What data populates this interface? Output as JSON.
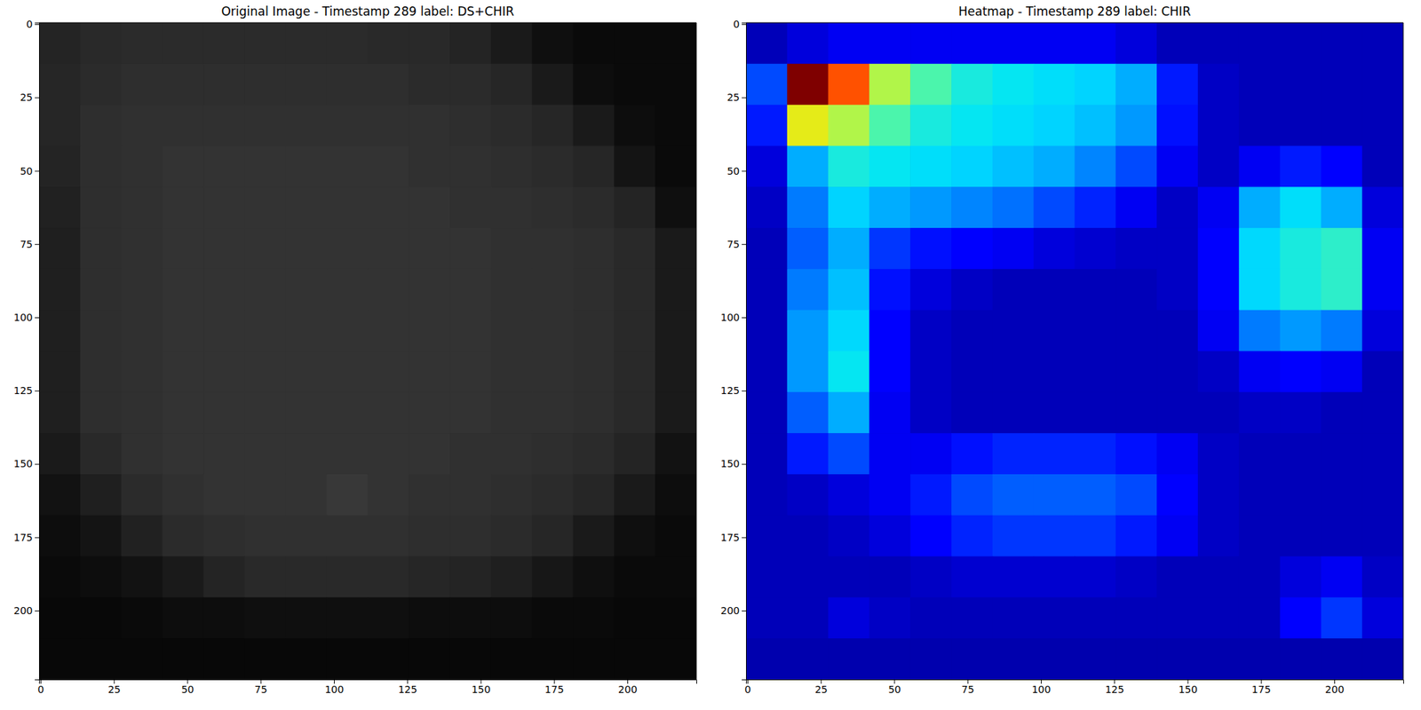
{
  "chart_data": [
    {
      "type": "heatmap",
      "title": "Original Image - Timestamp 289 label: DS+CHIR",
      "color": "gray",
      "xlim": [
        -0.5,
        223.5
      ],
      "ylim": [
        223.5,
        -0.5
      ],
      "xticks": [
        0,
        25,
        50,
        75,
        100,
        125,
        150,
        175,
        200
      ],
      "yticks": [
        0,
        25,
        50,
        75,
        100,
        125,
        150,
        175,
        200
      ],
      "zlim": [
        0,
        1
      ],
      "x": [
        6.5,
        20.5,
        34.5,
        48.5,
        62.5,
        76.5,
        90.5,
        104.5,
        118.5,
        132.5,
        146.5,
        160.5,
        174.5,
        188.5,
        202.5,
        216.5
      ],
      "y": [
        6.5,
        20.5,
        34.5,
        48.5,
        62.5,
        76.5,
        90.5,
        104.5,
        118.5,
        132.5,
        146.5,
        160.5,
        174.5,
        188.5,
        202.5,
        216.5
      ],
      "z": [
        [
          0.14,
          0.16,
          0.17,
          0.17,
          0.17,
          0.17,
          0.17,
          0.17,
          0.16,
          0.16,
          0.14,
          0.1,
          0.06,
          0.04,
          0.04,
          0.04
        ],
        [
          0.15,
          0.17,
          0.18,
          0.18,
          0.18,
          0.18,
          0.18,
          0.18,
          0.18,
          0.17,
          0.17,
          0.15,
          0.1,
          0.05,
          0.04,
          0.04
        ],
        [
          0.15,
          0.18,
          0.19,
          0.19,
          0.19,
          0.19,
          0.19,
          0.19,
          0.19,
          0.19,
          0.18,
          0.17,
          0.15,
          0.1,
          0.05,
          0.04
        ],
        [
          0.14,
          0.18,
          0.19,
          0.2,
          0.2,
          0.2,
          0.2,
          0.2,
          0.2,
          0.19,
          0.19,
          0.18,
          0.17,
          0.15,
          0.08,
          0.04
        ],
        [
          0.13,
          0.18,
          0.19,
          0.2,
          0.2,
          0.2,
          0.2,
          0.2,
          0.2,
          0.2,
          0.19,
          0.19,
          0.18,
          0.17,
          0.14,
          0.06
        ],
        [
          0.12,
          0.18,
          0.19,
          0.2,
          0.2,
          0.2,
          0.2,
          0.2,
          0.2,
          0.2,
          0.2,
          0.19,
          0.19,
          0.18,
          0.16,
          0.1
        ],
        [
          0.12,
          0.18,
          0.19,
          0.2,
          0.2,
          0.2,
          0.2,
          0.2,
          0.2,
          0.2,
          0.2,
          0.19,
          0.19,
          0.18,
          0.16,
          0.1
        ],
        [
          0.12,
          0.18,
          0.19,
          0.2,
          0.2,
          0.2,
          0.2,
          0.2,
          0.2,
          0.2,
          0.2,
          0.19,
          0.19,
          0.18,
          0.16,
          0.1
        ],
        [
          0.12,
          0.18,
          0.19,
          0.2,
          0.2,
          0.2,
          0.2,
          0.2,
          0.2,
          0.2,
          0.2,
          0.19,
          0.19,
          0.18,
          0.16,
          0.1
        ],
        [
          0.12,
          0.18,
          0.19,
          0.2,
          0.2,
          0.2,
          0.2,
          0.2,
          0.2,
          0.2,
          0.2,
          0.19,
          0.19,
          0.18,
          0.16,
          0.1
        ],
        [
          0.1,
          0.16,
          0.19,
          0.2,
          0.2,
          0.2,
          0.2,
          0.2,
          0.2,
          0.2,
          0.19,
          0.19,
          0.18,
          0.17,
          0.14,
          0.07
        ],
        [
          0.07,
          0.12,
          0.17,
          0.19,
          0.2,
          0.2,
          0.2,
          0.22,
          0.2,
          0.19,
          0.19,
          0.18,
          0.17,
          0.15,
          0.1,
          0.05
        ],
        [
          0.05,
          0.08,
          0.13,
          0.17,
          0.18,
          0.19,
          0.19,
          0.19,
          0.19,
          0.18,
          0.18,
          0.17,
          0.15,
          0.1,
          0.06,
          0.04
        ],
        [
          0.04,
          0.05,
          0.07,
          0.1,
          0.14,
          0.16,
          0.16,
          0.16,
          0.16,
          0.15,
          0.14,
          0.12,
          0.09,
          0.06,
          0.04,
          0.04
        ],
        [
          0.03,
          0.03,
          0.04,
          0.05,
          0.05,
          0.06,
          0.06,
          0.06,
          0.06,
          0.05,
          0.05,
          0.05,
          0.04,
          0.04,
          0.03,
          0.03
        ],
        [
          0.03,
          0.03,
          0.03,
          0.03,
          0.03,
          0.03,
          0.03,
          0.03,
          0.03,
          0.03,
          0.03,
          0.03,
          0.03,
          0.03,
          0.03,
          0.03
        ]
      ]
    },
    {
      "type": "heatmap",
      "title": "Heatmap - Timestamp 289 label: CHIR",
      "color": "jet",
      "xlim": [
        -0.5,
        223.5
      ],
      "ylim": [
        223.5,
        -0.5
      ],
      "xticks": [
        0,
        25,
        50,
        75,
        100,
        125,
        150,
        175,
        200
      ],
      "yticks": [
        0,
        25,
        50,
        75,
        100,
        125,
        150,
        175,
        200
      ],
      "zlim": [
        0,
        1
      ],
      "x": [
        6.5,
        20.5,
        34.5,
        48.5,
        62.5,
        76.5,
        90.5,
        104.5,
        118.5,
        132.5,
        146.5,
        160.5,
        174.5,
        188.5,
        202.5,
        216.5
      ],
      "y": [
        6.5,
        20.5,
        34.5,
        48.5,
        62.5,
        76.5,
        90.5,
        104.5,
        118.5,
        132.5,
        146.5,
        160.5,
        174.5,
        188.5,
        202.5,
        216.5
      ],
      "z": [
        [
          0.05,
          0.08,
          0.1,
          0.1,
          0.1,
          0.1,
          0.1,
          0.1,
          0.1,
          0.08,
          0.05,
          0.05,
          0.05,
          0.05,
          0.05,
          0.05
        ],
        [
          0.2,
          1.0,
          0.8,
          0.55,
          0.45,
          0.4,
          0.38,
          0.36,
          0.34,
          0.3,
          0.15,
          0.06,
          0.05,
          0.05,
          0.05,
          0.05
        ],
        [
          0.15,
          0.6,
          0.55,
          0.45,
          0.4,
          0.38,
          0.36,
          0.34,
          0.32,
          0.28,
          0.14,
          0.06,
          0.05,
          0.05,
          0.05,
          0.05
        ],
        [
          0.08,
          0.3,
          0.4,
          0.38,
          0.36,
          0.34,
          0.32,
          0.3,
          0.26,
          0.2,
          0.1,
          0.06,
          0.1,
          0.15,
          0.12,
          0.05
        ],
        [
          0.06,
          0.25,
          0.34,
          0.3,
          0.28,
          0.26,
          0.24,
          0.2,
          0.16,
          0.1,
          0.06,
          0.1,
          0.3,
          0.36,
          0.3,
          0.08
        ],
        [
          0.05,
          0.22,
          0.3,
          0.18,
          0.14,
          0.12,
          0.1,
          0.08,
          0.07,
          0.06,
          0.06,
          0.12,
          0.35,
          0.4,
          0.42,
          0.1
        ],
        [
          0.05,
          0.25,
          0.32,
          0.14,
          0.08,
          0.06,
          0.05,
          0.05,
          0.05,
          0.05,
          0.06,
          0.12,
          0.35,
          0.4,
          0.42,
          0.1
        ],
        [
          0.05,
          0.28,
          0.35,
          0.12,
          0.06,
          0.05,
          0.05,
          0.05,
          0.05,
          0.05,
          0.05,
          0.1,
          0.25,
          0.28,
          0.25,
          0.08
        ],
        [
          0.05,
          0.28,
          0.38,
          0.12,
          0.06,
          0.05,
          0.05,
          0.05,
          0.05,
          0.05,
          0.05,
          0.06,
          0.1,
          0.12,
          0.1,
          0.05
        ],
        [
          0.05,
          0.22,
          0.3,
          0.1,
          0.06,
          0.05,
          0.05,
          0.05,
          0.05,
          0.05,
          0.05,
          0.05,
          0.06,
          0.06,
          0.05,
          0.05
        ],
        [
          0.05,
          0.15,
          0.2,
          0.1,
          0.1,
          0.14,
          0.16,
          0.16,
          0.16,
          0.14,
          0.1,
          0.06,
          0.05,
          0.05,
          0.05,
          0.05
        ],
        [
          0.05,
          0.06,
          0.08,
          0.1,
          0.15,
          0.2,
          0.22,
          0.22,
          0.22,
          0.2,
          0.12,
          0.06,
          0.05,
          0.05,
          0.05,
          0.05
        ],
        [
          0.05,
          0.05,
          0.06,
          0.08,
          0.12,
          0.16,
          0.18,
          0.18,
          0.18,
          0.15,
          0.1,
          0.06,
          0.05,
          0.05,
          0.05,
          0.05
        ],
        [
          0.05,
          0.05,
          0.05,
          0.05,
          0.06,
          0.07,
          0.07,
          0.07,
          0.07,
          0.06,
          0.05,
          0.05,
          0.05,
          0.08,
          0.1,
          0.06
        ],
        [
          0.05,
          0.05,
          0.08,
          0.06,
          0.05,
          0.05,
          0.05,
          0.05,
          0.05,
          0.05,
          0.05,
          0.05,
          0.05,
          0.12,
          0.18,
          0.08
        ],
        [
          0.04,
          0.04,
          0.04,
          0.04,
          0.04,
          0.04,
          0.04,
          0.04,
          0.04,
          0.04,
          0.04,
          0.04,
          0.04,
          0.04,
          0.04,
          0.04
        ]
      ]
    }
  ]
}
